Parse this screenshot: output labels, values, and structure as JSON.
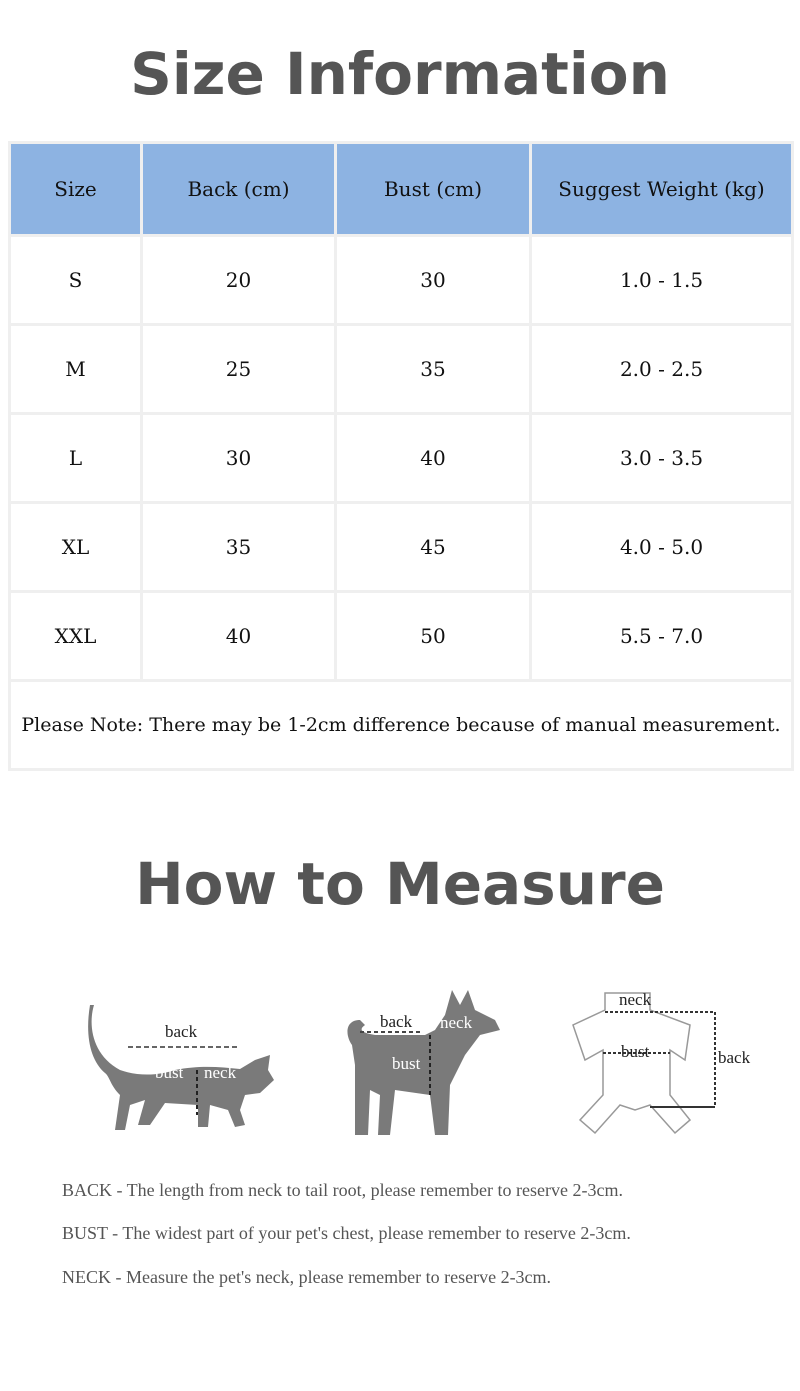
{
  "size_info": {
    "title": "Size Information",
    "headers": [
      "Size",
      "Back (cm)",
      "Bust (cm)",
      "Suggest Weight (kg)"
    ],
    "rows": [
      [
        "S",
        "20",
        "30",
        "1.0 - 1.5"
      ],
      [
        "M",
        "25",
        "35",
        "2.0 - 2.5"
      ],
      [
        "L",
        "30",
        "40",
        "3.0 - 3.5"
      ],
      [
        "XL",
        "35",
        "45",
        "4.0 - 5.0"
      ],
      [
        "XXL",
        "40",
        "50",
        "5.5 - 7.0"
      ]
    ],
    "note": "Please Note: There may be 1-2cm difference because of manual measurement."
  },
  "how_to_measure": {
    "title": "How to Measure",
    "labels": {
      "back": "back",
      "bust": "bust",
      "neck": "neck"
    },
    "descriptions": [
      "BACK - The length from neck to tail root, please remember to reserve 2-3cm.",
      "BUST - The widest part of your pet's chest, please remember to reserve 2-3cm.",
      "NECK - Measure the pet's neck, please remember to reserve 2-3cm."
    ]
  },
  "colors": {
    "header_bg": "#8db3e2",
    "title": "#555555",
    "silhouette": "#7a7a7a"
  }
}
